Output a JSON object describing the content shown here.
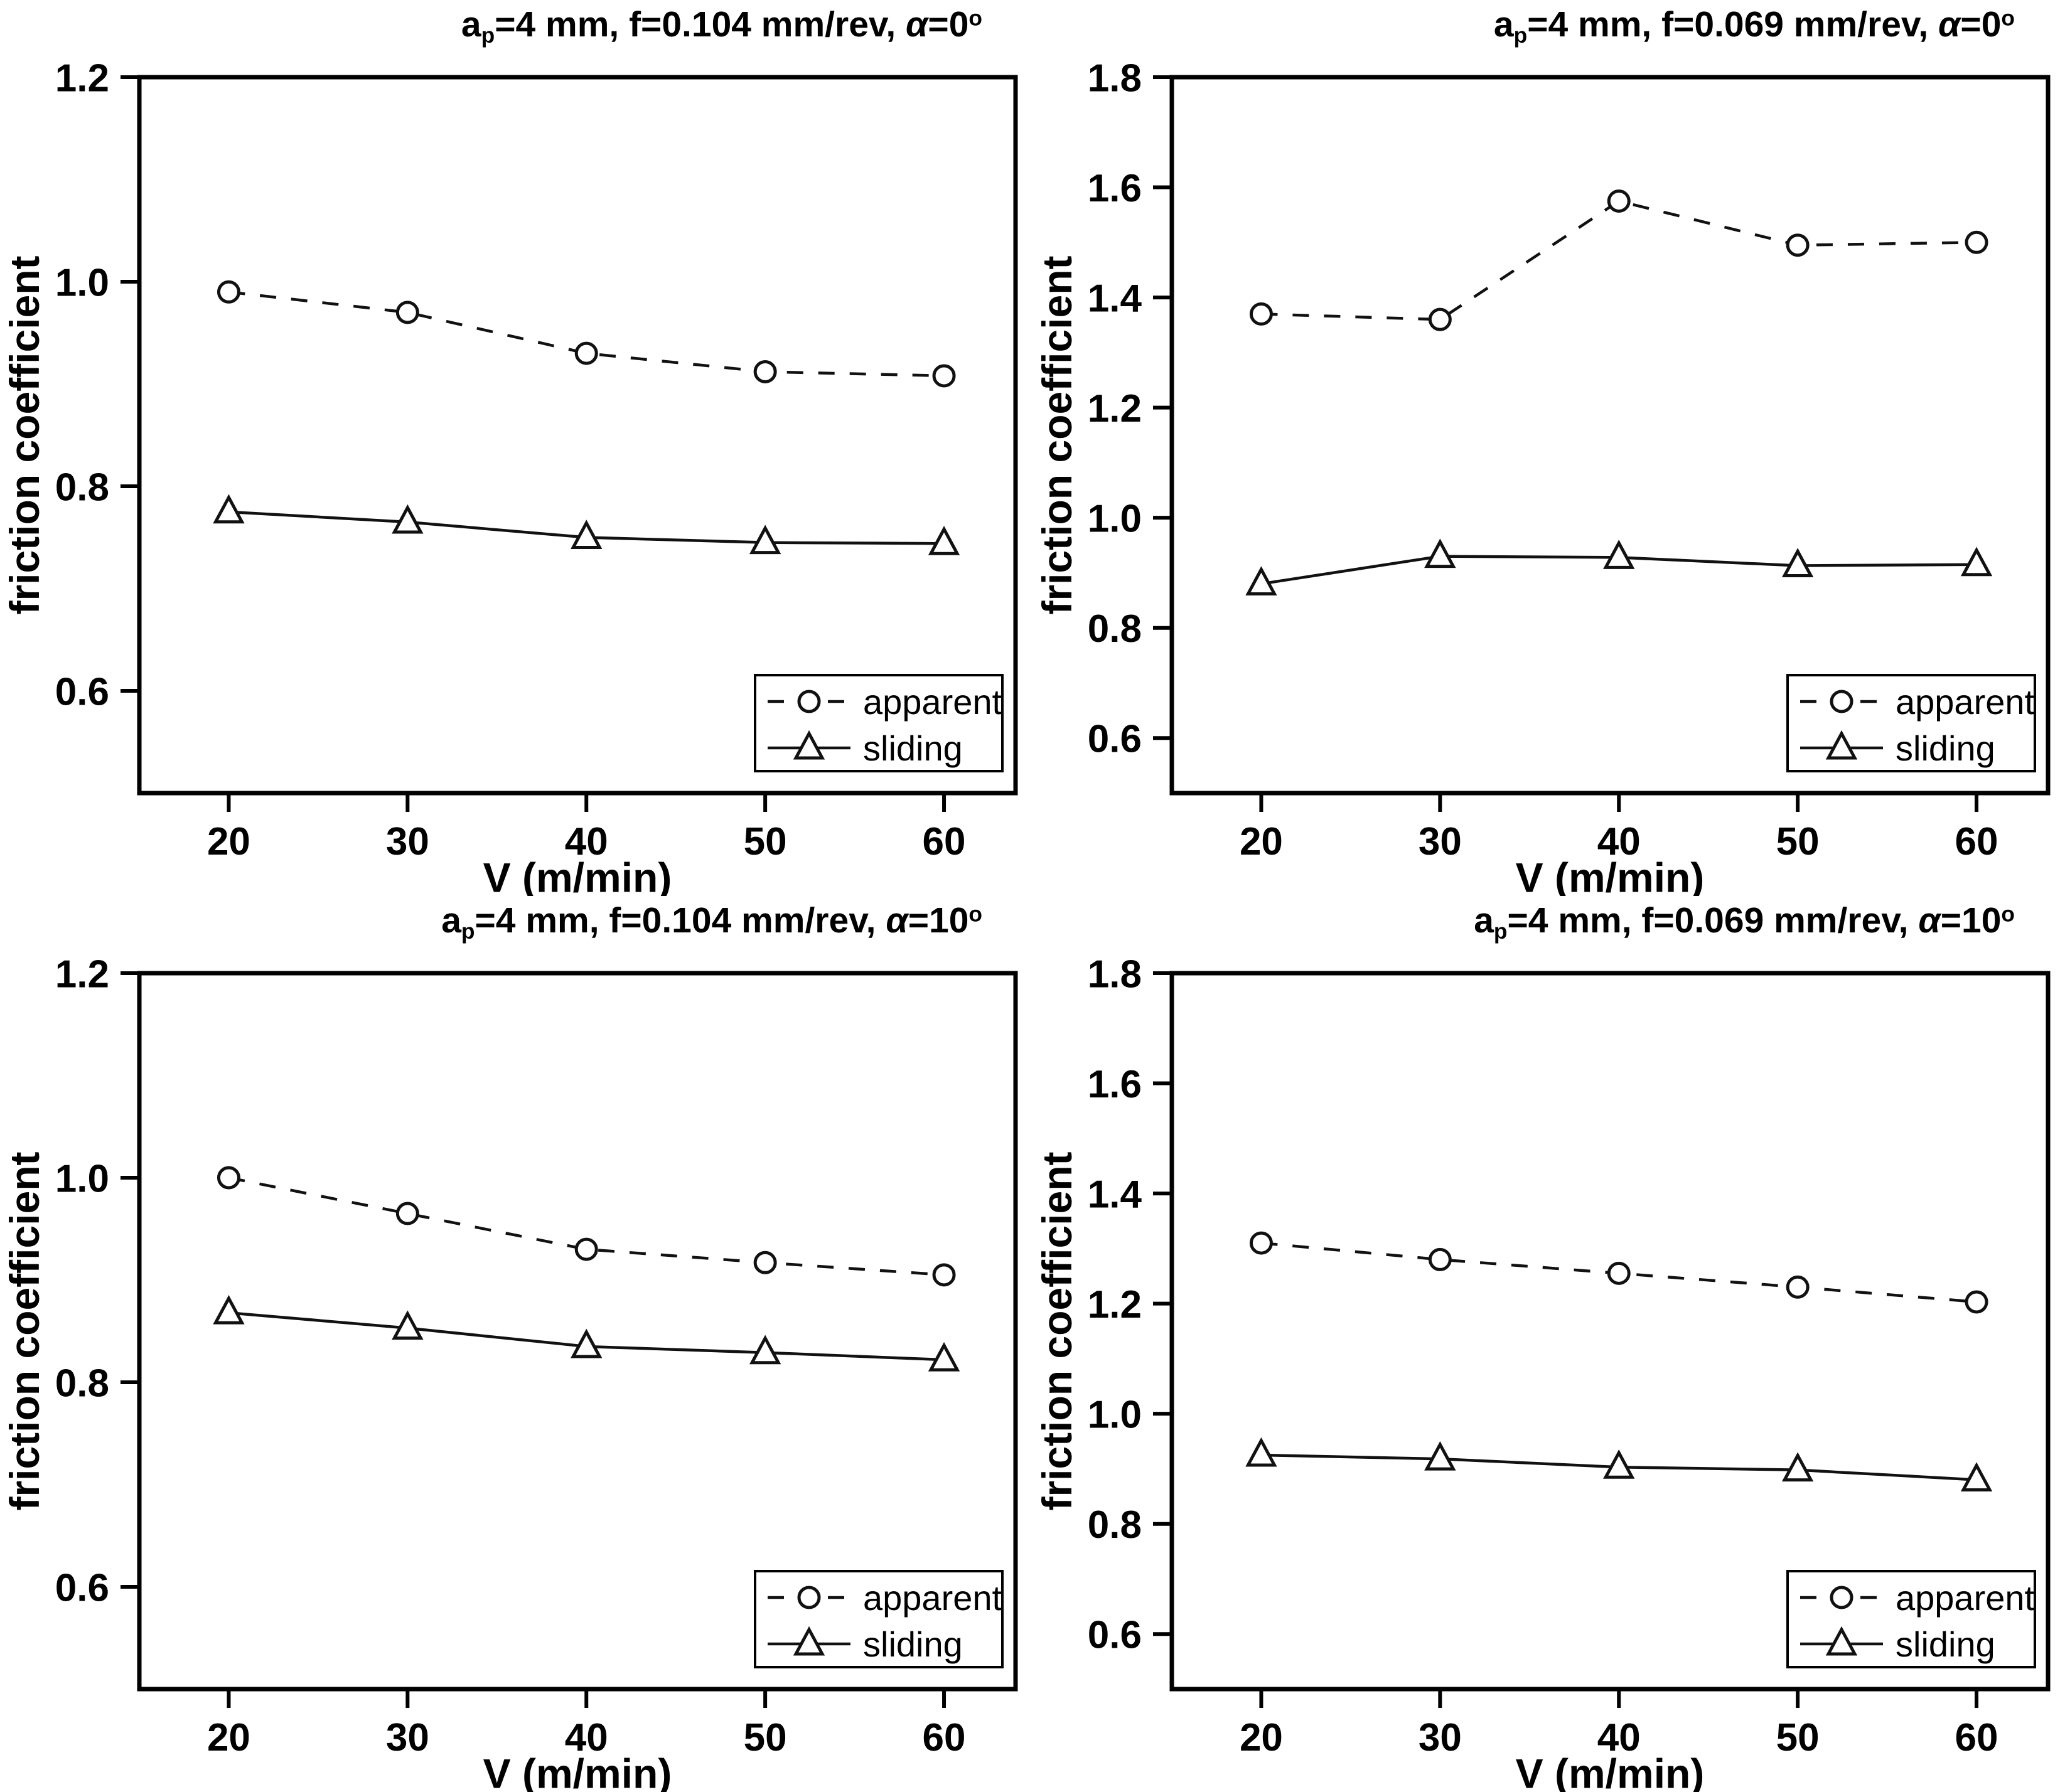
{
  "figure": {
    "background": "#ffffff",
    "axis_color": "#000000",
    "series_color": "#111111",
    "marker_fill": "#ffffff"
  },
  "chart_data": [
    {
      "type": "line",
      "title_segments": [
        {
          "text": "a",
          "style": "normal"
        },
        {
          "text": "p",
          "style": "sub"
        },
        {
          "text": "=4 mm, f=0.104 mm/rev, ",
          "style": "normal"
        },
        {
          "text": "α",
          "style": "italic"
        },
        {
          "text": "=0",
          "style": "normal"
        },
        {
          "text": "o",
          "style": "sup"
        }
      ],
      "xlabel": "V (m/min)",
      "ylabel": "friction coefficient",
      "x": [
        20,
        30,
        40,
        50,
        60
      ],
      "xlim": [
        15,
        64
      ],
      "ylim": [
        0.5,
        1.2
      ],
      "xticks": [
        20,
        30,
        40,
        50,
        60
      ],
      "yticks": [
        0.6,
        0.8,
        1.0,
        1.2
      ],
      "grid": false,
      "legend_position": "bottom-right",
      "series": [
        {
          "name": "apparent",
          "marker": "circle",
          "line_style": "dashed",
          "values": [
            0.99,
            0.97,
            0.93,
            0.912,
            0.908
          ]
        },
        {
          "name": "sliding",
          "marker": "triangle",
          "line_style": "solid",
          "values": [
            0.775,
            0.765,
            0.75,
            0.745,
            0.744
          ]
        }
      ]
    },
    {
      "type": "line",
      "title_segments": [
        {
          "text": "a",
          "style": "normal"
        },
        {
          "text": "p",
          "style": "sub"
        },
        {
          "text": "=4 mm, f=0.069 mm/rev, ",
          "style": "normal"
        },
        {
          "text": "α",
          "style": "italic"
        },
        {
          "text": "=0",
          "style": "normal"
        },
        {
          "text": "o",
          "style": "sup"
        }
      ],
      "xlabel": "V (m/min)",
      "ylabel": "friction coefficient",
      "x": [
        20,
        30,
        40,
        50,
        60
      ],
      "xlim": [
        15,
        64
      ],
      "ylim": [
        0.5,
        1.8
      ],
      "xticks": [
        20,
        30,
        40,
        50,
        60
      ],
      "yticks": [
        0.6,
        0.8,
        1.0,
        1.2,
        1.4,
        1.6,
        1.8
      ],
      "grid": false,
      "legend_position": "bottom-right",
      "series": [
        {
          "name": "apparent",
          "marker": "circle",
          "line_style": "dashed",
          "values": [
            1.37,
            1.36,
            1.575,
            1.495,
            1.5
          ]
        },
        {
          "name": "sliding",
          "marker": "triangle",
          "line_style": "solid",
          "values": [
            0.88,
            0.93,
            0.928,
            0.913,
            0.915
          ]
        }
      ]
    },
    {
      "type": "line",
      "title_segments": [
        {
          "text": "a",
          "style": "normal"
        },
        {
          "text": "p",
          "style": "sub"
        },
        {
          "text": "=4 mm, f=0.104 mm/rev, ",
          "style": "normal"
        },
        {
          "text": "α",
          "style": "italic"
        },
        {
          "text": "=10",
          "style": "normal"
        },
        {
          "text": "o",
          "style": "sup"
        }
      ],
      "xlabel": "V (m/min)",
      "ylabel": "friction coefficient",
      "x": [
        20,
        30,
        40,
        50,
        60
      ],
      "xlim": [
        15,
        64
      ],
      "ylim": [
        0.5,
        1.2
      ],
      "xticks": [
        20,
        30,
        40,
        50,
        60
      ],
      "yticks": [
        0.6,
        0.8,
        1.0,
        1.2
      ],
      "grid": false,
      "legend_position": "bottom-right",
      "series": [
        {
          "name": "apparent",
          "marker": "circle",
          "line_style": "dashed",
          "values": [
            1.0,
            0.965,
            0.93,
            0.917,
            0.905
          ]
        },
        {
          "name": "sliding",
          "marker": "triangle",
          "line_style": "solid",
          "values": [
            0.868,
            0.853,
            0.835,
            0.829,
            0.822
          ]
        }
      ]
    },
    {
      "type": "line",
      "title_segments": [
        {
          "text": "a",
          "style": "normal"
        },
        {
          "text": "p",
          "style": "sub"
        },
        {
          "text": "=4 mm, f=0.069 mm/rev, ",
          "style": "normal"
        },
        {
          "text": "α",
          "style": "italic"
        },
        {
          "text": "=10",
          "style": "normal"
        },
        {
          "text": "o",
          "style": "sup"
        }
      ],
      "xlabel": "V (m/min)",
      "ylabel": "friction coefficient",
      "x": [
        20,
        30,
        40,
        50,
        60
      ],
      "xlim": [
        15,
        64
      ],
      "ylim": [
        0.5,
        1.8
      ],
      "xticks": [
        20,
        30,
        40,
        50,
        60
      ],
      "yticks": [
        0.6,
        0.8,
        1.0,
        1.2,
        1.4,
        1.6,
        1.8
      ],
      "grid": false,
      "legend_position": "bottom-right",
      "series": [
        {
          "name": "apparent",
          "marker": "circle",
          "line_style": "dashed",
          "values": [
            1.31,
            1.28,
            1.255,
            1.23,
            1.203
          ]
        },
        {
          "name": "sliding",
          "marker": "triangle",
          "line_style": "solid",
          "values": [
            0.925,
            0.918,
            0.903,
            0.898,
            0.88
          ]
        }
      ]
    }
  ]
}
